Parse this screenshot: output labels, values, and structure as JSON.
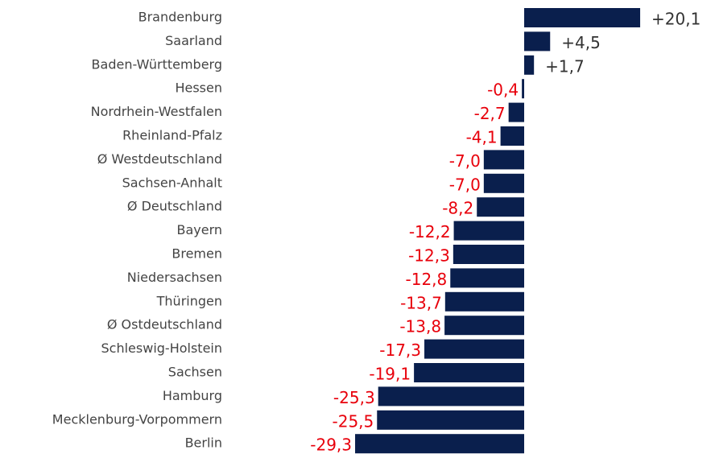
{
  "chart_data": {
    "type": "bar",
    "orientation": "horizontal",
    "categories": [
      "Brandenburg",
      "Saarland",
      "Baden-Württemberg",
      "Hessen",
      "Nordrhein-Westfalen",
      "Rheinland-Pfalz",
      "Ø Westdeutschland",
      "Sachsen-Anhalt",
      "Ø Deutschland",
      "Bayern",
      "Bremen",
      "Niedersachsen",
      "Thüringen",
      "Ø Ostdeutschland",
      "Schleswig-Holstein",
      "Sachsen",
      "Hamburg",
      "Mecklenburg-Vorpommern",
      "Berlin"
    ],
    "values": [
      20.1,
      4.5,
      1.7,
      -0.4,
      -2.7,
      -4.1,
      -7.0,
      -7.0,
      -8.2,
      -12.2,
      -12.3,
      -12.8,
      -13.7,
      -13.8,
      -17.3,
      -19.1,
      -25.3,
      -25.5,
      -29.3
    ],
    "value_labels": [
      "+20,1",
      "+4,5",
      "+1,7",
      "-0,4",
      "-2,7",
      "-4,1",
      "-7,0",
      "-7,0",
      "-8,2",
      "-12,2",
      "-12,3",
      "-12,8",
      "-13,7",
      "-13,8",
      "-17,3",
      "-19,1",
      "-25,3",
      "-25,5",
      "-29,3"
    ],
    "color": "#0a1f4d",
    "positive_label_color": "#333333",
    "negative_label_color": "#e8000b",
    "xlim": [
      -30,
      24
    ]
  }
}
